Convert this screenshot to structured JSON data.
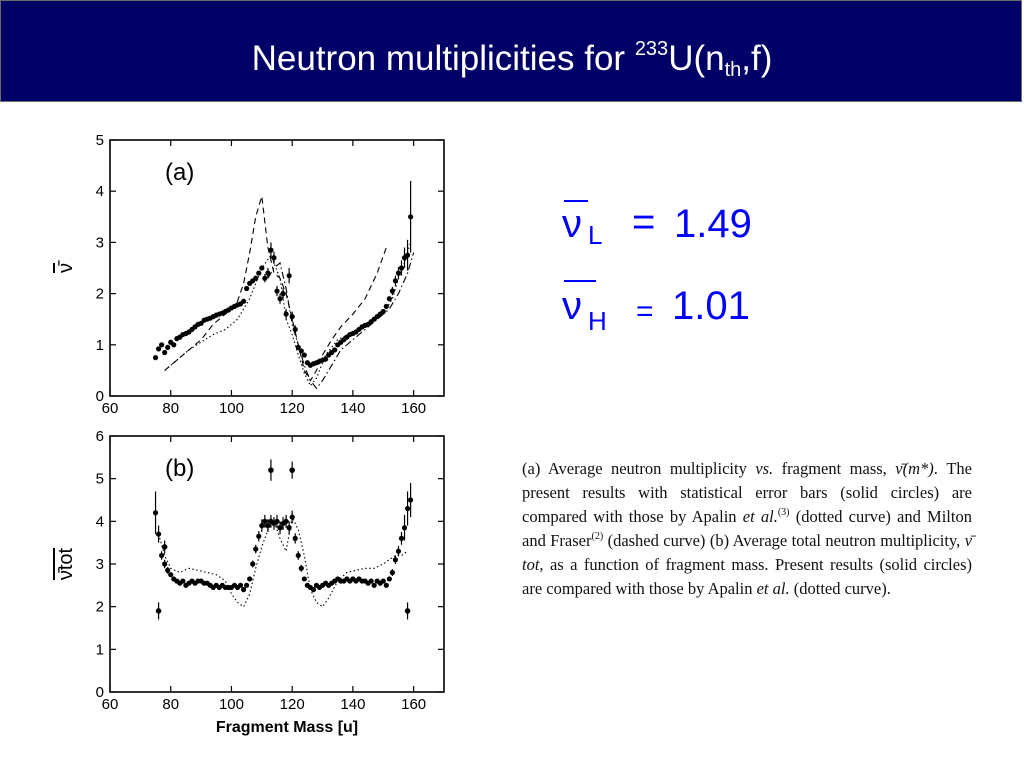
{
  "slide": {
    "title_prefix": "Neutron multiplicities for ",
    "title_mass": "233",
    "title_element": "U(n",
    "title_sub": "th",
    "title_suffix": ",f)",
    "title_color": "#ffffff",
    "header_bg": "#000066",
    "accent": "#0000ff"
  },
  "results": {
    "nu_symbol": "ν",
    "light_sub": "L",
    "light_eq": "=",
    "light_value": "1.49",
    "heavy_sub": "H",
    "heavy_eq": "=",
    "heavy_value": "1.01"
  },
  "caption": {
    "s1": "(a) Average neutron multiplicity ",
    "s1_vs": "vs.",
    "s2": " fragment mass, ",
    "s2_nu": "ν̄(m*)",
    "s3": ". The present results with statistical error bars (solid circles) are compared with those by Apalin ",
    "s3_etal": "et al.",
    "s3_ref": "(3)",
    "s4": " (dotted curve) and Milton and Fraser",
    "s4_ref": "(2)",
    "s5": " (dashed curve) (b) Average total neutron multiplicity, ",
    "s5_nutot": "ν̄ tot",
    "s6": ", as a function of fragment mass. Present results (solid circles) are compared with those by Apalin ",
    "s6_etal": "et al.",
    "s7": " (dotted curve)."
  },
  "chart_data": [
    {
      "type": "scatter",
      "panel_label": "(a)",
      "xlabel": "",
      "ylabel": "ν̄",
      "xlim": [
        60,
        170
      ],
      "ylim": [
        0,
        5
      ],
      "xticks": [
        60,
        80,
        100,
        120,
        140,
        160
      ],
      "yticks": [
        0,
        1,
        2,
        3,
        4,
        5
      ],
      "grid": false,
      "series": [
        {
          "style": "points-with-error-bars",
          "x": [
            75,
            76,
            77,
            78,
            79,
            80,
            81,
            82,
            83,
            84,
            85,
            86,
            87,
            88,
            89,
            90,
            91,
            92,
            93,
            94,
            95,
            96,
            97,
            98,
            99,
            100,
            101,
            102,
            103,
            104,
            105,
            106,
            107,
            108,
            109,
            110,
            111,
            112,
            113,
            114,
            115,
            116,
            117,
            118,
            119,
            120,
            121,
            122,
            123,
            124,
            125,
            126,
            127,
            128,
            129,
            130,
            131,
            132,
            133,
            134,
            135,
            136,
            137,
            138,
            139,
            140,
            141,
            142,
            143,
            144,
            145,
            146,
            147,
            148,
            149,
            150,
            151,
            152,
            153,
            154,
            155,
            156,
            157,
            158,
            159
          ],
          "y": [
            0.75,
            0.92,
            1.0,
            0.85,
            0.95,
            1.05,
            1.0,
            1.12,
            1.15,
            1.2,
            1.22,
            1.25,
            1.3,
            1.35,
            1.4,
            1.42,
            1.48,
            1.5,
            1.52,
            1.55,
            1.58,
            1.6,
            1.62,
            1.65,
            1.68,
            1.72,
            1.75,
            1.78,
            1.8,
            1.85,
            2.1,
            2.2,
            2.25,
            2.3,
            2.4,
            2.5,
            2.3,
            2.4,
            2.85,
            2.7,
            2.05,
            1.9,
            2.0,
            1.6,
            2.35,
            1.55,
            1.3,
            0.95,
            0.88,
            0.8,
            0.65,
            0.6,
            0.63,
            0.65,
            0.68,
            0.7,
            0.72,
            0.8,
            0.85,
            0.9,
            1.0,
            1.05,
            1.1,
            1.15,
            1.2,
            1.22,
            1.25,
            1.3,
            1.35,
            1.38,
            1.4,
            1.45,
            1.5,
            1.55,
            1.6,
            1.65,
            1.75,
            1.9,
            2.05,
            2.25,
            2.4,
            2.5,
            2.7,
            2.75,
            3.5
          ],
          "err": [
            0.05,
            0.05,
            0.05,
            0.05,
            0.05,
            0.05,
            0.05,
            0.05,
            0.05,
            0.05,
            0.05,
            0.05,
            0.05,
            0.05,
            0.05,
            0.05,
            0.05,
            0.05,
            0.05,
            0.05,
            0.05,
            0.05,
            0.05,
            0.05,
            0.05,
            0.05,
            0.05,
            0.05,
            0.05,
            0.05,
            0.05,
            0.05,
            0.05,
            0.05,
            0.05,
            0.05,
            0.08,
            0.1,
            0.15,
            0.12,
            0.1,
            0.1,
            0.1,
            0.1,
            0.15,
            0.1,
            0.08,
            0.06,
            0.05,
            0.05,
            0.05,
            0.05,
            0.05,
            0.05,
            0.05,
            0.05,
            0.05,
            0.05,
            0.05,
            0.05,
            0.05,
            0.05,
            0.05,
            0.05,
            0.05,
            0.05,
            0.05,
            0.05,
            0.05,
            0.05,
            0.05,
            0.05,
            0.05,
            0.05,
            0.05,
            0.05,
            0.06,
            0.06,
            0.08,
            0.1,
            0.12,
            0.15,
            0.2,
            0.3,
            0.7
          ]
        },
        {
          "style": "dotted",
          "x": [
            78,
            82,
            86,
            90,
            94,
            98,
            102,
            106,
            110,
            113,
            116,
            118,
            120,
            122,
            124,
            126,
            128,
            131,
            135,
            140,
            145,
            150,
            153,
            155,
            157,
            159
          ],
          "y": [
            0.5,
            0.7,
            0.9,
            1.05,
            1.2,
            1.3,
            1.5,
            1.9,
            2.5,
            2.75,
            2.3,
            1.5,
            1.2,
            0.8,
            0.45,
            0.2,
            0.35,
            0.8,
            1.1,
            1.25,
            1.4,
            1.6,
            1.9,
            2.3,
            2.6,
            3.0
          ]
        },
        {
          "style": "dashed",
          "x": [
            78,
            82,
            86,
            90,
            94,
            98,
            102,
            104,
            106,
            108,
            110,
            112,
            114,
            116,
            118,
            120,
            122,
            124,
            126,
            128,
            130,
            133,
            136,
            140,
            144,
            148,
            151
          ],
          "y": [
            0.5,
            0.7,
            0.9,
            1.1,
            1.4,
            1.6,
            1.85,
            2.2,
            2.8,
            3.5,
            3.9,
            2.9,
            2.4,
            2.3,
            2.0,
            1.5,
            1.0,
            0.5,
            0.3,
            0.5,
            0.8,
            1.1,
            1.35,
            1.6,
            1.9,
            2.4,
            2.9
          ]
        },
        {
          "style": "dash-dot",
          "x": [
            112,
            114,
            116,
            118,
            120,
            122,
            124,
            126,
            128,
            130,
            133,
            136,
            140,
            144,
            148,
            152,
            155,
            158,
            160
          ],
          "y": [
            2.3,
            2.5,
            2.6,
            2.1,
            1.4,
            1.0,
            0.6,
            0.3,
            0.15,
            0.3,
            0.6,
            0.9,
            1.1,
            1.3,
            1.5,
            1.7,
            2.0,
            2.4,
            2.8
          ]
        }
      ]
    },
    {
      "type": "scatter",
      "panel_label": "(b)",
      "xlabel": "Fragment Mass [u]",
      "ylabel": "ν̄tot",
      "xlim": [
        60,
        170
      ],
      "ylim": [
        0,
        6
      ],
      "xticks": [
        60,
        80,
        100,
        120,
        140,
        160
      ],
      "yticks": [
        0,
        1,
        2,
        3,
        4,
        5,
        6
      ],
      "grid": false,
      "series": [
        {
          "style": "points-with-error-bars",
          "x": [
            75,
            76,
            77,
            78,
            79,
            80,
            81,
            82,
            83,
            84,
            85,
            86,
            87,
            88,
            89,
            90,
            91,
            92,
            93,
            94,
            95,
            96,
            97,
            98,
            99,
            100,
            101,
            102,
            103,
            104,
            105,
            106,
            107,
            108,
            109,
            110,
            111,
            112,
            113,
            114,
            115,
            116,
            117,
            118,
            119,
            120,
            121,
            122,
            123,
            124,
            125,
            126,
            127,
            128,
            129,
            130,
            131,
            132,
            133,
            134,
            135,
            136,
            137,
            138,
            139,
            140,
            141,
            142,
            143,
            144,
            145,
            146,
            147,
            148,
            149,
            150,
            151,
            152,
            153,
            154,
            155,
            156,
            157,
            158,
            159
          ],
          "y": [
            4.2,
            3.7,
            3.2,
            3.0,
            2.85,
            2.75,
            2.65,
            2.6,
            2.55,
            2.6,
            2.5,
            2.55,
            2.6,
            2.55,
            2.6,
            2.6,
            2.55,
            2.55,
            2.5,
            2.45,
            2.5,
            2.45,
            2.5,
            2.45,
            2.45,
            2.45,
            2.5,
            2.45,
            2.5,
            2.4,
            2.5,
            2.65,
            3.0,
            3.35,
            3.65,
            3.9,
            4.0,
            3.9,
            4.0,
            3.95,
            4.0,
            3.85,
            3.95,
            4.0,
            3.85,
            4.1,
            3.6,
            3.2,
            2.9,
            2.65,
            2.5,
            2.45,
            2.4,
            2.5,
            2.45,
            2.5,
            2.55,
            2.5,
            2.55,
            2.6,
            2.65,
            2.6,
            2.6,
            2.65,
            2.6,
            2.65,
            2.6,
            2.65,
            2.6,
            2.6,
            2.55,
            2.6,
            2.5,
            2.6,
            2.55,
            2.6,
            2.5,
            2.65,
            2.8,
            3.1,
            3.3,
            3.6,
            3.85,
            4.3,
            4.5
          ],
          "err": [
            0.5,
            0.2,
            0.1,
            0.1,
            0.08,
            0.06,
            0.05,
            0.05,
            0.05,
            0.05,
            0.05,
            0.05,
            0.05,
            0.05,
            0.05,
            0.05,
            0.05,
            0.05,
            0.05,
            0.05,
            0.05,
            0.05,
            0.05,
            0.05,
            0.05,
            0.05,
            0.05,
            0.05,
            0.05,
            0.05,
            0.05,
            0.06,
            0.08,
            0.1,
            0.12,
            0.15,
            0.15,
            0.15,
            0.15,
            0.15,
            0.15,
            0.15,
            0.15,
            0.15,
            0.15,
            0.15,
            0.12,
            0.1,
            0.08,
            0.06,
            0.05,
            0.05,
            0.05,
            0.05,
            0.05,
            0.05,
            0.05,
            0.05,
            0.05,
            0.05,
            0.05,
            0.05,
            0.05,
            0.05,
            0.05,
            0.05,
            0.05,
            0.05,
            0.05,
            0.05,
            0.05,
            0.05,
            0.05,
            0.05,
            0.05,
            0.05,
            0.05,
            0.06,
            0.08,
            0.1,
            0.12,
            0.15,
            0.3,
            0.4,
            0.4
          ],
          "outliers": [
            {
              "x": 76,
              "y": 1.9,
              "err": 0.2
            },
            {
              "x": 78,
              "y": 3.4,
              "err": 0.15
            },
            {
              "x": 113,
              "y": 5.2,
              "err": 0.25
            },
            {
              "x": 120,
              "y": 5.2,
              "err": 0.2
            },
            {
              "x": 158,
              "y": 1.9,
              "err": 0.2
            }
          ]
        },
        {
          "style": "dotted",
          "x": [
            76,
            78,
            80,
            83,
            86,
            89,
            92,
            95,
            98,
            100,
            102,
            104,
            106,
            108,
            110,
            112,
            114,
            116,
            118,
            120,
            122,
            124,
            126,
            128,
            130,
            132,
            135,
            138,
            141,
            144,
            147,
            150,
            152,
            154,
            156,
            158
          ],
          "y": [
            3.7,
            3.2,
            2.9,
            2.8,
            2.9,
            2.85,
            2.8,
            2.75,
            2.6,
            2.3,
            2.1,
            2.0,
            2.3,
            2.9,
            3.4,
            3.8,
            4.0,
            3.6,
            3.3,
            4.1,
            3.8,
            3.2,
            2.4,
            2.1,
            2.0,
            2.2,
            2.6,
            2.8,
            2.85,
            2.9,
            2.9,
            3.0,
            3.1,
            3.2,
            3.2,
            3.3
          ]
        }
      ]
    }
  ]
}
